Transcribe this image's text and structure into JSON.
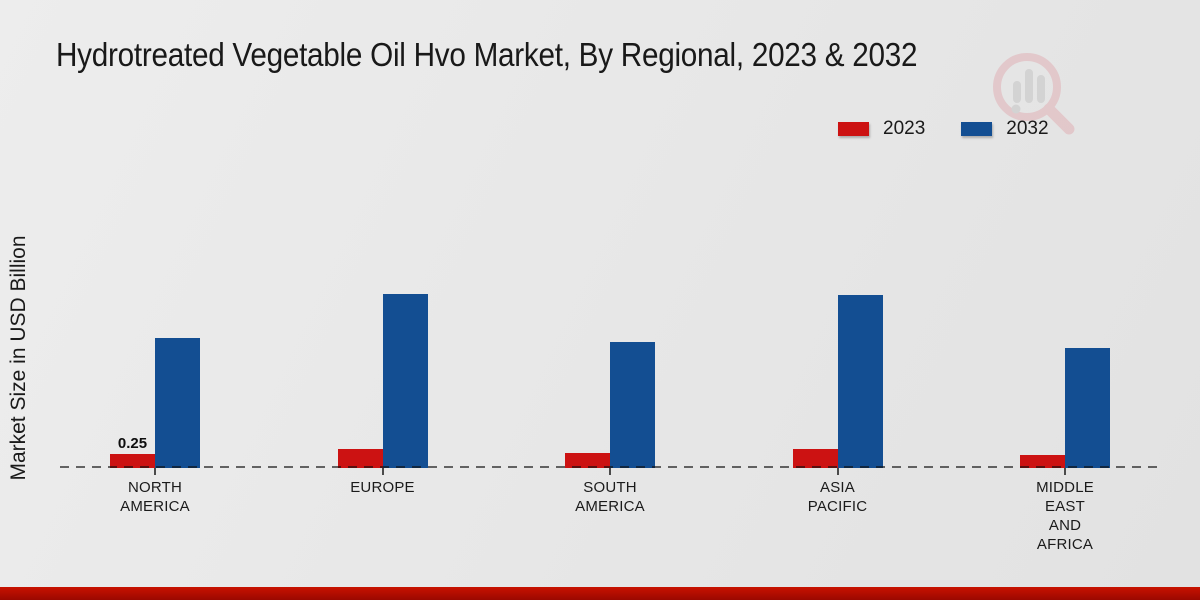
{
  "title": "Hydrotreated Vegetable Oil Hvo Market, By Regional, 2023 & 2032",
  "ylabel": "Market Size in USD Billion",
  "legend": {
    "position": "top-right",
    "items": [
      {
        "label": "2023",
        "color": "#cc1212"
      },
      {
        "label": "2032",
        "color": "#134e92"
      }
    ]
  },
  "watermark": {
    "icon": "magnifier-bar-chart-logo",
    "ring_color": "#dfa6ac",
    "bar_color": "#bfbfbf"
  },
  "colors": {
    "series_2023": "#cc1212",
    "series_2032": "#134e92",
    "baseline_dash": "#4a4a4a",
    "footer_stripe": "#b20d00",
    "background": "#e8e8e8",
    "text": "#1a1a1a"
  },
  "footer": {
    "stripe_color": "#b20d00"
  },
  "chart_data": {
    "type": "bar",
    "title": "Hydrotreated Vegetable Oil Hvo Market, By Regional, 2023 & 2032",
    "xlabel": "",
    "ylabel": "Market Size in USD Billion",
    "categories": [
      "NORTH AMERICA",
      "EUROPE",
      "SOUTH AMERICA",
      "ASIA PACIFIC",
      "MIDDLE EAST AND AFRICA"
    ],
    "category_lines": [
      [
        "NORTH",
        "AMERICA"
      ],
      [
        "EUROPE"
      ],
      [
        "SOUTH",
        "AMERICA"
      ],
      [
        "ASIA",
        "PACIFIC"
      ],
      [
        "MIDDLE",
        "EAST",
        "AND",
        "AFRICA"
      ]
    ],
    "series": [
      {
        "name": "2023",
        "color": "#cc1212",
        "values": [
          0.25,
          0.34,
          0.27,
          0.34,
          0.23
        ]
      },
      {
        "name": "2032",
        "color": "#134e92",
        "values": [
          2.32,
          3.1,
          2.25,
          3.09,
          2.15
        ]
      }
    ],
    "annotations": [
      {
        "series": "2023",
        "category": "NORTH AMERICA",
        "text": "0.25"
      }
    ],
    "ylim": [
      0,
      3.5
    ],
    "grid": false,
    "y_axis_ticks_visible": false,
    "baseline_style": "dashed",
    "legend_position": "top-right"
  }
}
